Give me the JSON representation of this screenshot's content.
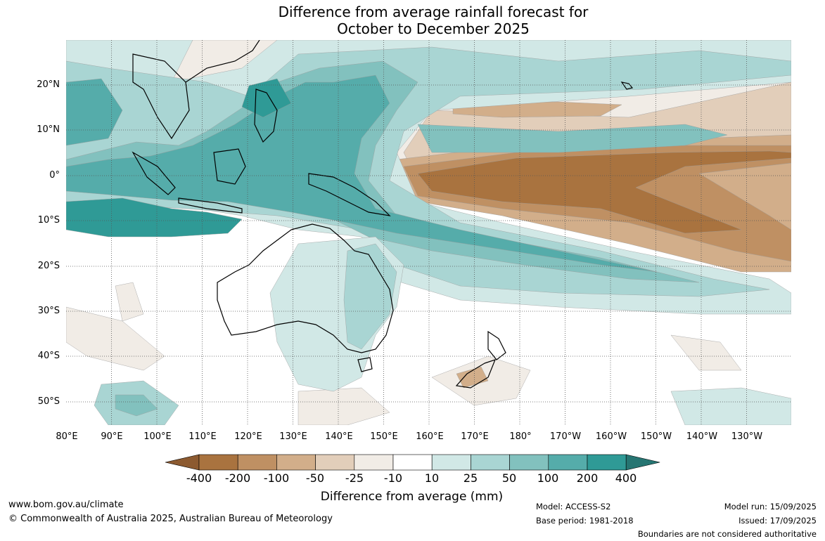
{
  "title": {
    "line1": "Difference from average rainfall forecast for",
    "line2": "October to December 2025"
  },
  "map": {
    "latitude_labels": [
      "20°N",
      "10°N",
      "0°",
      "10°S",
      "20°S",
      "30°S",
      "40°S",
      "50°S"
    ],
    "longitude_labels": [
      "80°E",
      "90°E",
      "100°E",
      "110°E",
      "120°E",
      "130°E",
      "140°E",
      "150°E",
      "160°E",
      "170°E",
      "180°",
      "170°W",
      "160°W",
      "150°W",
      "140°W",
      "130°W"
    ],
    "colors": {
      "wet_strong": "#2f9a96",
      "wet_mid": "#55acaa",
      "wet_light": "#82c1be",
      "wet_pale": "#a9d5d3",
      "wet_faint": "#d1e8e6",
      "dry_faint": "#f1ece6",
      "dry_pale": "#e2ceba",
      "dry_light": "#d2ae8a",
      "dry_mid": "#bf9063",
      "dry_strong": "#a9733f"
    }
  },
  "colorbar": {
    "ticks": [
      "-400",
      "-200",
      "-100",
      "-50",
      "-25",
      "-10",
      "10",
      "25",
      "50",
      "100",
      "200",
      "400"
    ],
    "colors": [
      "#8c5a30",
      "#a9733f",
      "#bf9063",
      "#d2ae8a",
      "#e2ceba",
      "#f1ece6",
      "#ffffff",
      "#d1e8e6",
      "#a9d5d3",
      "#82c1be",
      "#55acaa",
      "#2f9a96",
      "#267572"
    ],
    "label": "Difference from average (mm)"
  },
  "footer": {
    "website": "www.bom.gov.au/climate",
    "copyright": "© Commonwealth of Australia 2025, Australian Bureau of Meteorology",
    "model": "Model: ACCESS-S2",
    "base_period": "Base period: 1981-2018",
    "model_run": "Model run: 15/09/2025",
    "issued": "Issued: 17/09/2025",
    "disclaimer": "Boundaries are not considered authoritative"
  }
}
